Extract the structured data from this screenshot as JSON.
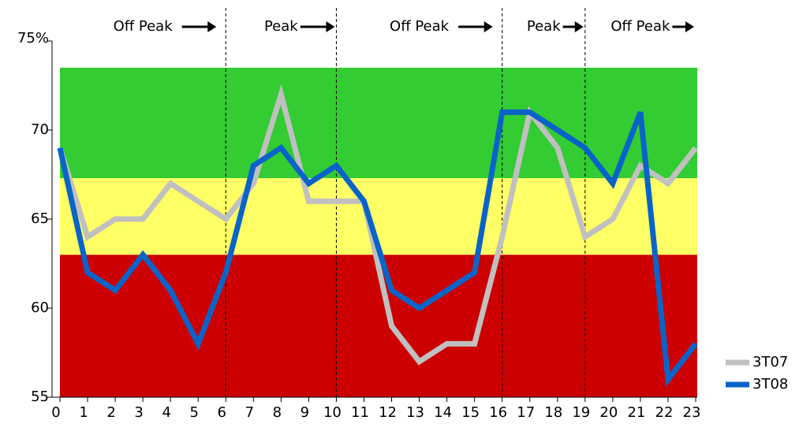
{
  "chart_data": {
    "type": "line",
    "x": [
      0,
      1,
      2,
      3,
      4,
      5,
      6,
      7,
      8,
      9,
      10,
      11,
      12,
      13,
      14,
      15,
      16,
      17,
      18,
      19,
      20,
      21,
      22,
      23
    ],
    "series": [
      {
        "name": "3T07",
        "color": "#c0c0c0",
        "values": [
          69,
          64,
          65,
          65,
          67,
          66,
          65,
          67,
          72,
          66,
          66,
          66,
          59,
          57,
          58,
          58,
          64,
          71,
          69,
          64,
          65,
          68,
          67,
          69
        ]
      },
      {
        "name": "3T08",
        "color": "#0a64c8",
        "values": [
          69,
          62,
          61,
          63,
          61,
          58,
          62,
          68,
          69,
          67,
          68,
          66,
          61,
          60,
          61,
          62,
          71,
          71,
          70,
          69,
          67,
          71,
          56,
          58
        ]
      }
    ],
    "xlim": [
      0,
      23
    ],
    "xticks": [
      0,
      1,
      2,
      3,
      4,
      5,
      6,
      7,
      8,
      9,
      10,
      11,
      12,
      13,
      14,
      15,
      16,
      17,
      18,
      19,
      20,
      21,
      22,
      23
    ],
    "ylim": [
      55,
      75
    ],
    "yticks": [
      55,
      60,
      65,
      70,
      {
        "value": 75,
        "label": "75%"
      }
    ],
    "bands": [
      {
        "from": 55,
        "to": 63,
        "color": "#cc0000"
      },
      {
        "from": 63,
        "to": 67.3,
        "color": "#ffff66"
      },
      {
        "from": 67.3,
        "to": 73.5,
        "color": "#33cc33"
      }
    ],
    "periods": [
      {
        "label": "Off Peak",
        "from": 0,
        "to": 6
      },
      {
        "label": "Peak",
        "from": 6,
        "to": 10
      },
      {
        "label": "Off Peak",
        "from": 10,
        "to": 16
      },
      {
        "label": "Peak",
        "from": 16,
        "to": 19
      },
      {
        "label": "Off Peak",
        "from": 19,
        "to": 23
      }
    ],
    "legend": "bottom-right"
  }
}
